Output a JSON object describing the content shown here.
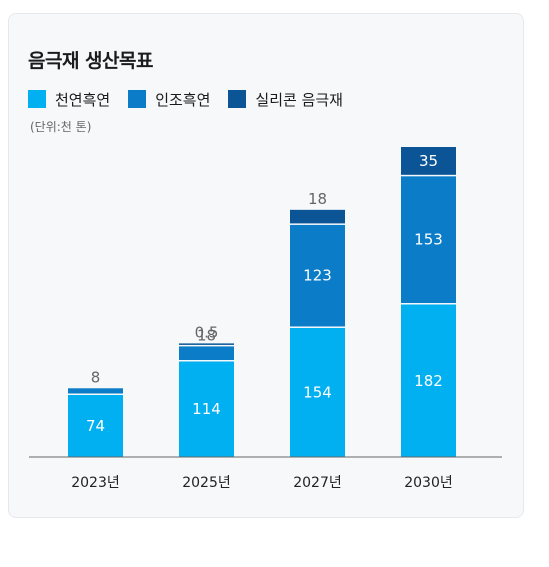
{
  "chart_data": {
    "type": "bar",
    "stacked": true,
    "title": "음극재 생산목표",
    "unit_note": "(단위:천 톤)",
    "categories": [
      "2023년",
      "2025년",
      "2027년",
      "2030년"
    ],
    "series": [
      {
        "name": "천연흑연",
        "color": "#00b0f0",
        "values": [
          74,
          114,
          154,
          182
        ]
      },
      {
        "name": "인조흑연",
        "color": "#0a7cc8",
        "values": [
          8,
          18,
          123,
          153
        ]
      },
      {
        "name": "실리콘 음극재",
        "color": "#0b5596",
        "values": [
          0,
          0.5,
          18,
          35
        ]
      }
    ],
    "data_labels": [
      [
        "74",
        "114",
        "154",
        "182"
      ],
      [
        "8",
        "18",
        "123",
        "153"
      ],
      [
        "",
        "0.5",
        "18",
        "35"
      ]
    ],
    "ylim": [
      0,
      370
    ],
    "grid": false,
    "legend_position": "top-left"
  }
}
